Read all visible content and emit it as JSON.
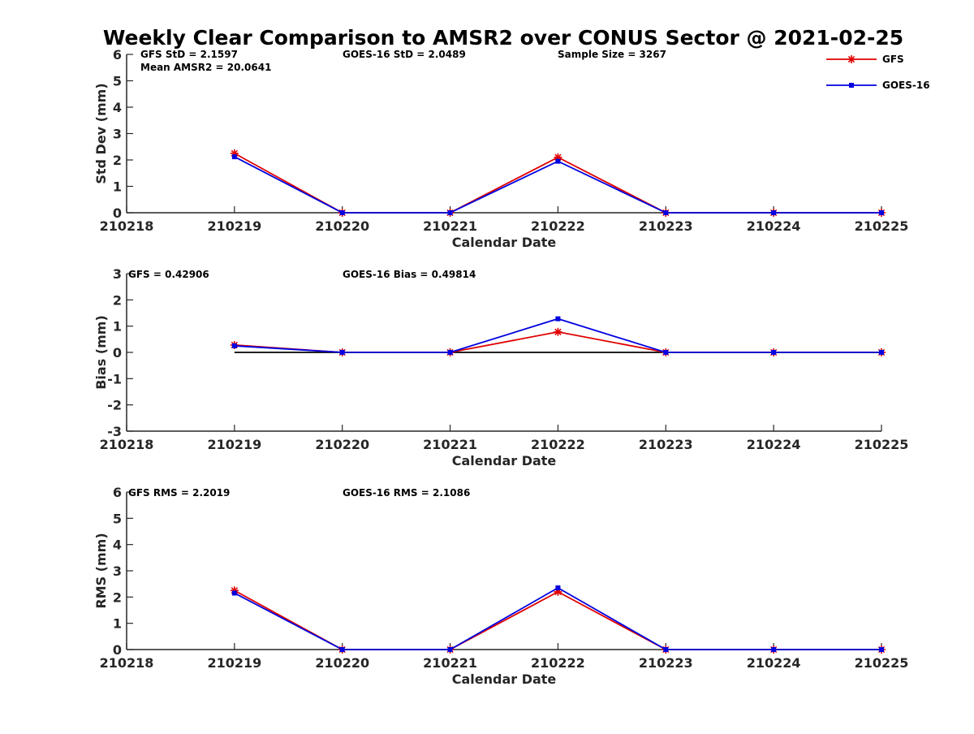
{
  "title": "Weekly Clear Comparison to AMSR2 over CONUS Sector @ 2021-02-25",
  "legend": [
    {
      "name": "GFS",
      "color": "#e00000",
      "marker": "asterisk"
    },
    {
      "name": "GOES-16",
      "color": "#0000e0",
      "marker": "square"
    }
  ],
  "chart_data": [
    {
      "type": "line",
      "x": [
        "210218",
        "210219",
        "210220",
        "210221",
        "210222",
        "210223",
        "210224",
        "210225"
      ],
      "xlabel": "Calendar Date",
      "ylabel": "Std Dev (mm)",
      "ylim": [
        0,
        6
      ],
      "yticks": [
        "0",
        "1",
        "2",
        "3",
        "4",
        "5",
        "6"
      ],
      "series": [
        {
          "name": "GFS",
          "values": [
            null,
            2.25,
            0,
            0,
            2.1,
            0,
            0,
            0
          ]
        },
        {
          "name": "GOES-16",
          "values": [
            null,
            2.12,
            0,
            0,
            1.95,
            0,
            0,
            0
          ]
        }
      ],
      "annotations": [
        "GFS StD = 2.1597",
        "GOES-16 StD = 2.0489",
        "Sample Size = 3267",
        "Mean AMSR2 = 20.0641"
      ]
    },
    {
      "type": "line",
      "x": [
        "210218",
        "210219",
        "210220",
        "210221",
        "210222",
        "210223",
        "210224",
        "210225"
      ],
      "xlabel": "Calendar Date",
      "ylabel": "Bias (mm)",
      "ylim": [
        -3,
        3
      ],
      "yticks": [
        "-3",
        "-2",
        "-1",
        "0",
        "1",
        "2",
        "3"
      ],
      "reference_line": 0,
      "series": [
        {
          "name": "GFS",
          "values": [
            null,
            0.28,
            0,
            0,
            0.78,
            0,
            0,
            0
          ]
        },
        {
          "name": "GOES-16",
          "values": [
            null,
            0.25,
            0,
            0,
            1.28,
            0,
            0,
            0
          ]
        }
      ],
      "annotations": [
        "GFS = 0.42906",
        "GOES-16 Bias  = 0.49814"
      ]
    },
    {
      "type": "line",
      "x": [
        "210218",
        "210219",
        "210220",
        "210221",
        "210222",
        "210223",
        "210224",
        "210225"
      ],
      "xlabel": "Calendar Date",
      "ylabel": "RMS (mm)",
      "ylim": [
        0,
        6
      ],
      "yticks": [
        "0",
        "1",
        "2",
        "3",
        "4",
        "5",
        "6"
      ],
      "series": [
        {
          "name": "GFS",
          "values": [
            null,
            2.25,
            0,
            0,
            2.2,
            0,
            0,
            0
          ]
        },
        {
          "name": "GOES-16",
          "values": [
            null,
            2.15,
            0,
            0,
            2.35,
            0,
            0,
            0
          ]
        }
      ],
      "annotations": [
        "GFS RMS = 2.2019",
        "GOES-16 RMS = 2.1086"
      ]
    }
  ]
}
